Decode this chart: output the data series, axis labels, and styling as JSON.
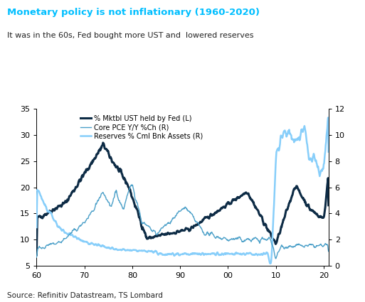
{
  "title": "Monetary policy is not inflationary (1960-2020)",
  "subtitle": "It was in the 60s, Fed bought more UST and  lowered reserves",
  "source": "Source: Refinitiv Datastream, TS Lombard",
  "title_color": "#00BFFF",
  "subtitle_color": "#222222",
  "left_ylim": [
    5,
    35
  ],
  "right_ylim": [
    0,
    12
  ],
  "left_yticks": [
    5,
    10,
    15,
    20,
    25,
    30,
    35
  ],
  "right_yticks": [
    0,
    2,
    4,
    6,
    8,
    10,
    12
  ],
  "xtick_labels": [
    "60",
    "70",
    "80",
    "90",
    "00",
    "10",
    "20"
  ],
  "dark_navy": "#0d2b45",
  "medium_blue": "#4a9fc8",
  "light_blue": "#87CEFA",
  "legend_labels": [
    "% Mktbl UST held by Fed (L)",
    "Core PCE Y/Y %Ch (R)",
    "Reserves % Cml Bnk Assets (R)"
  ]
}
